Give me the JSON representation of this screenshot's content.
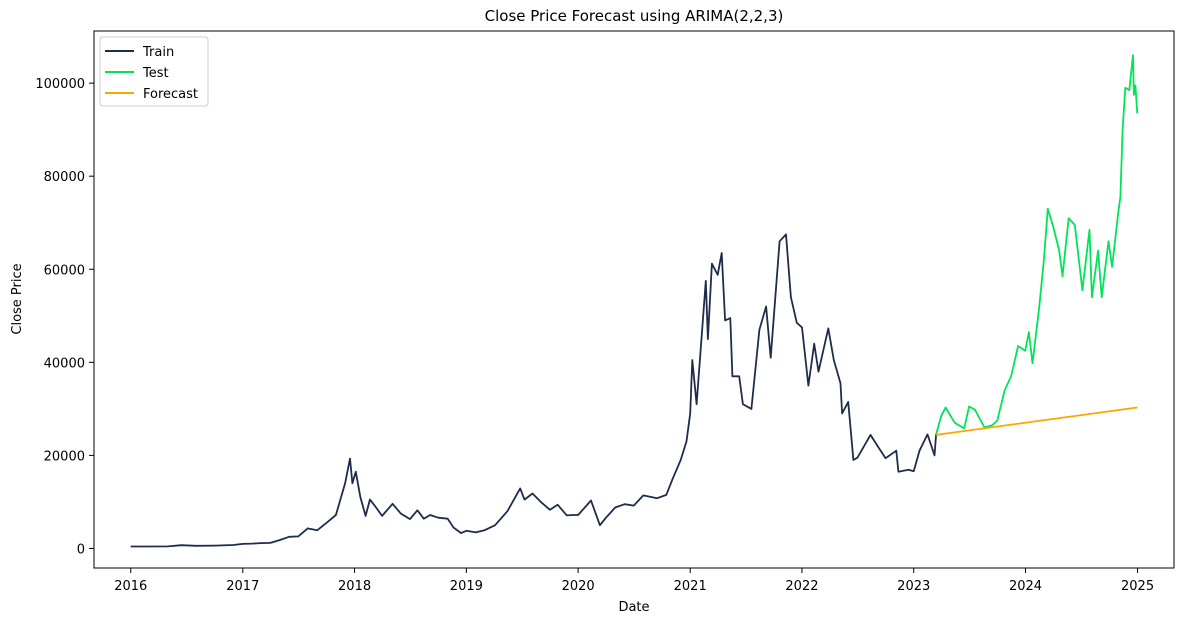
{
  "chart_data": {
    "type": "line",
    "title": "Close Price Forecast using ARIMA(2,2,3)",
    "xlabel": "Date",
    "ylabel": "Close Price",
    "xlim": [
      "2015-09-03",
      "2025-04-30"
    ],
    "ylim": [
      -4200,
      111200
    ],
    "x_ticks": [
      "2016-01-01",
      "2017-01-01",
      "2018-01-01",
      "2019-01-01",
      "2020-01-01",
      "2021-01-01",
      "2022-01-01",
      "2023-01-01",
      "2024-01-01",
      "2025-01-01"
    ],
    "x_tick_labels": [
      "2016",
      "2017",
      "2018",
      "2019",
      "2020",
      "2021",
      "2022",
      "2023",
      "2024",
      "2025"
    ],
    "y_ticks": [
      0,
      20000,
      40000,
      60000,
      80000,
      100000
    ],
    "y_tick_labels": [
      "0",
      "20000",
      "40000",
      "60000",
      "80000",
      "100000"
    ],
    "grid": false,
    "legend_position": "top-left",
    "series": [
      {
        "name": "Train",
        "color": "#1f2d4a",
        "points": [
          [
            "2016-01-01",
            430
          ],
          [
            "2016-03-01",
            420
          ],
          [
            "2016-05-01",
            450
          ],
          [
            "2016-06-15",
            700
          ],
          [
            "2016-08-01",
            580
          ],
          [
            "2016-10-01",
            610
          ],
          [
            "2016-12-01",
            750
          ],
          [
            "2017-01-01",
            980
          ],
          [
            "2017-02-01",
            1050
          ],
          [
            "2017-03-01",
            1150
          ],
          [
            "2017-04-01",
            1200
          ],
          [
            "2017-05-01",
            1800
          ],
          [
            "2017-06-01",
            2500
          ],
          [
            "2017-07-01",
            2600
          ],
          [
            "2017-08-01",
            4300
          ],
          [
            "2017-09-01",
            3900
          ],
          [
            "2017-10-01",
            5500
          ],
          [
            "2017-11-01",
            7200
          ],
          [
            "2017-12-01",
            14000
          ],
          [
            "2017-12-17",
            19300
          ],
          [
            "2017-12-25",
            14000
          ],
          [
            "2018-01-05",
            16500
          ],
          [
            "2018-01-20",
            11000
          ],
          [
            "2018-02-06",
            7000
          ],
          [
            "2018-02-20",
            10500
          ],
          [
            "2018-03-10",
            9000
          ],
          [
            "2018-04-01",
            7000
          ],
          [
            "2018-05-05",
            9600
          ],
          [
            "2018-06-01",
            7500
          ],
          [
            "2018-07-01",
            6300
          ],
          [
            "2018-07-25",
            8200
          ],
          [
            "2018-08-15",
            6400
          ],
          [
            "2018-09-05",
            7200
          ],
          [
            "2018-10-01",
            6600
          ],
          [
            "2018-11-01",
            6400
          ],
          [
            "2018-11-20",
            4500
          ],
          [
            "2018-12-15",
            3300
          ],
          [
            "2019-01-01",
            3800
          ],
          [
            "2019-02-01",
            3450
          ],
          [
            "2019-03-01",
            3900
          ],
          [
            "2019-04-05",
            5000
          ],
          [
            "2019-05-15",
            8000
          ],
          [
            "2019-06-26",
            12900
          ],
          [
            "2019-07-10",
            10500
          ],
          [
            "2019-08-05",
            11800
          ],
          [
            "2019-09-01",
            10000
          ],
          [
            "2019-10-01",
            8300
          ],
          [
            "2019-10-26",
            9400
          ],
          [
            "2019-11-25",
            7100
          ],
          [
            "2019-12-15",
            7200
          ],
          [
            "2020-01-01",
            7200
          ],
          [
            "2020-02-12",
            10300
          ],
          [
            "2020-03-12",
            5000
          ],
          [
            "2020-04-01",
            6600
          ],
          [
            "2020-05-01",
            8800
          ],
          [
            "2020-06-01",
            9500
          ],
          [
            "2020-07-01",
            9200
          ],
          [
            "2020-08-01",
            11400
          ],
          [
            "2020-09-15",
            10800
          ],
          [
            "2020-10-15",
            11500
          ],
          [
            "2020-11-05",
            15000
          ],
          [
            "2020-12-01",
            19000
          ],
          [
            "2020-12-20",
            23000
          ],
          [
            "2021-01-01",
            29000
          ],
          [
            "2021-01-08",
            40500
          ],
          [
            "2021-01-22",
            31000
          ],
          [
            "2021-02-08",
            46000
          ],
          [
            "2021-02-21",
            57500
          ],
          [
            "2021-02-28",
            45000
          ],
          [
            "2021-03-13",
            61200
          ],
          [
            "2021-04-01",
            58800
          ],
          [
            "2021-04-14",
            63500
          ],
          [
            "2021-04-25",
            49000
          ],
          [
            "2021-05-12",
            49500
          ],
          [
            "2021-05-19",
            37000
          ],
          [
            "2021-06-10",
            37000
          ],
          [
            "2021-06-22",
            31000
          ],
          [
            "2021-07-20",
            30000
          ],
          [
            "2021-08-15",
            47000
          ],
          [
            "2021-09-06",
            52000
          ],
          [
            "2021-09-21",
            41000
          ],
          [
            "2021-10-20",
            66000
          ],
          [
            "2021-11-10",
            67500
          ],
          [
            "2021-11-26",
            54000
          ],
          [
            "2021-12-15",
            48500
          ],
          [
            "2022-01-01",
            47500
          ],
          [
            "2022-01-22",
            35000
          ],
          [
            "2022-02-10",
            44000
          ],
          [
            "2022-02-24",
            38000
          ],
          [
            "2022-03-28",
            47300
          ],
          [
            "2022-04-15",
            40500
          ],
          [
            "2022-05-07",
            35500
          ],
          [
            "2022-05-12",
            29000
          ],
          [
            "2022-06-01",
            31500
          ],
          [
            "2022-06-18",
            19000
          ],
          [
            "2022-07-01",
            19500
          ],
          [
            "2022-08-13",
            24400
          ],
          [
            "2022-09-10",
            21500
          ],
          [
            "2022-10-01",
            19400
          ],
          [
            "2022-11-05",
            21000
          ],
          [
            "2022-11-12",
            16500
          ],
          [
            "2022-12-15",
            16900
          ],
          [
            "2023-01-01",
            16600
          ],
          [
            "2023-01-20",
            21000
          ],
          [
            "2023-02-15",
            24500
          ],
          [
            "2023-03-10",
            20000
          ],
          [
            "2023-03-15",
            24500
          ]
        ]
      },
      {
        "name": "Test",
        "color": "#00e35a",
        "points": [
          [
            "2023-03-15",
            24500
          ],
          [
            "2023-04-01",
            28500
          ],
          [
            "2023-04-15",
            30300
          ],
          [
            "2023-05-01",
            28500
          ],
          [
            "2023-05-15",
            27000
          ],
          [
            "2023-06-15",
            25800
          ],
          [
            "2023-07-01",
            30500
          ],
          [
            "2023-07-20",
            29800
          ],
          [
            "2023-08-20",
            26000
          ],
          [
            "2023-09-15",
            26500
          ],
          [
            "2023-10-01",
            27500
          ],
          [
            "2023-10-25",
            34000
          ],
          [
            "2023-11-15",
            37000
          ],
          [
            "2023-12-08",
            43500
          ],
          [
            "2023-12-31",
            42500
          ],
          [
            "2024-01-12",
            46500
          ],
          [
            "2024-01-24",
            39800
          ],
          [
            "2024-02-15",
            52000
          ],
          [
            "2024-03-01",
            62000
          ],
          [
            "2024-03-14",
            73000
          ],
          [
            "2024-04-01",
            69000
          ],
          [
            "2024-04-20",
            64000
          ],
          [
            "2024-05-01",
            58500
          ],
          [
            "2024-05-21",
            71000
          ],
          [
            "2024-06-10",
            69500
          ],
          [
            "2024-07-05",
            55500
          ],
          [
            "2024-07-28",
            68500
          ],
          [
            "2024-08-05",
            54000
          ],
          [
            "2024-08-25",
            64000
          ],
          [
            "2024-09-06",
            54000
          ],
          [
            "2024-09-28",
            66000
          ],
          [
            "2024-10-10",
            60500
          ],
          [
            "2024-10-30",
            72300
          ],
          [
            "2024-11-06",
            75500
          ],
          [
            "2024-11-13",
            90000
          ],
          [
            "2024-11-22",
            99000
          ],
          [
            "2024-12-05",
            98500
          ],
          [
            "2024-12-17",
            106000
          ],
          [
            "2024-12-20",
            97500
          ],
          [
            "2024-12-25",
            99500
          ],
          [
            "2024-12-31",
            93500
          ]
        ]
      },
      {
        "name": "Forecast",
        "color": "#ffa500",
        "points": [
          [
            "2023-03-15",
            24400
          ],
          [
            "2024-12-31",
            30300
          ]
        ]
      }
    ]
  }
}
